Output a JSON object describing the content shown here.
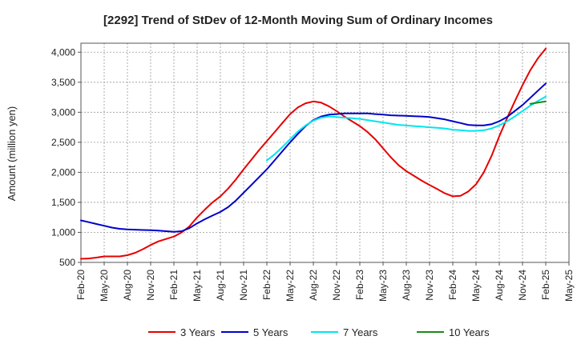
{
  "chart_data": {
    "type": "line",
    "title": "[2292]  Trend of StDev of 12-Month Moving Sum of Ordinary Incomes",
    "xlabel": "",
    "ylabel": "Amount (million yen)",
    "ylim": [
      500,
      4150
    ],
    "yticks": [
      500,
      1000,
      1500,
      2000,
      2500,
      3000,
      3500,
      4000
    ],
    "ytick_labels": [
      "500",
      "1,000",
      "1,500",
      "2,000",
      "2,500",
      "3,000",
      "3,500",
      "4,000"
    ],
    "xlim": [
      0,
      63
    ],
    "xticks": [
      0,
      3,
      6,
      9,
      12,
      15,
      18,
      21,
      24,
      27,
      30,
      33,
      36,
      39,
      42,
      45,
      48,
      51,
      54,
      57,
      60,
      63
    ],
    "xtick_labels": [
      "Feb-20",
      "May-20",
      "Aug-20",
      "Nov-20",
      "Feb-21",
      "May-21",
      "Aug-21",
      "Nov-21",
      "Feb-22",
      "May-22",
      "Aug-22",
      "Nov-22",
      "Feb-23",
      "May-23",
      "Aug-23",
      "Nov-23",
      "Feb-24",
      "May-24",
      "Aug-24",
      "Nov-24",
      "Feb-25",
      "May-25"
    ],
    "grid": true,
    "legend_position": "bottom",
    "series": [
      {
        "name": "3 Years",
        "color": "#e60000",
        "x": [
          0,
          1,
          2,
          3,
          4,
          5,
          6,
          7,
          8,
          9,
          10,
          11,
          12,
          13,
          14,
          15,
          16,
          17,
          18,
          19,
          20,
          21,
          22,
          23,
          24,
          25,
          26,
          27,
          28,
          29,
          30,
          31,
          32,
          33,
          34,
          35,
          36,
          37,
          38,
          39,
          40,
          41,
          42,
          43,
          44,
          45,
          46,
          47,
          48,
          49,
          50,
          51,
          52,
          53,
          54,
          55,
          56,
          57,
          58,
          59,
          60
        ],
        "values": [
          560,
          565,
          580,
          600,
          600,
          600,
          620,
          660,
          720,
          790,
          850,
          890,
          930,
          1000,
          1100,
          1250,
          1380,
          1500,
          1600,
          1730,
          1880,
          2050,
          2210,
          2370,
          2520,
          2670,
          2820,
          2970,
          3080,
          3150,
          3180,
          3160,
          3100,
          3020,
          2930,
          2850,
          2770,
          2670,
          2550,
          2400,
          2250,
          2120,
          2020,
          1940,
          1860,
          1790,
          1720,
          1650,
          1600,
          1610,
          1680,
          1800,
          2000,
          2270,
          2600,
          2900,
          3180,
          3450,
          3700,
          3900,
          4060
        ]
      },
      {
        "name": "5 Years",
        "color": "#0000cc",
        "x": [
          0,
          1,
          2,
          3,
          4,
          5,
          6,
          7,
          8,
          9,
          10,
          11,
          12,
          13,
          14,
          15,
          16,
          17,
          18,
          19,
          20,
          21,
          22,
          23,
          24,
          25,
          26,
          27,
          28,
          29,
          30,
          31,
          32,
          33,
          34,
          35,
          36,
          37,
          38,
          39,
          40,
          41,
          42,
          43,
          44,
          45,
          46,
          47,
          48,
          49,
          50,
          51,
          52,
          53,
          54,
          55,
          56,
          57,
          58,
          59,
          60
        ],
        "values": [
          1200,
          1170,
          1140,
          1110,
          1080,
          1060,
          1050,
          1045,
          1040,
          1035,
          1030,
          1020,
          1010,
          1020,
          1070,
          1150,
          1220,
          1280,
          1340,
          1420,
          1530,
          1660,
          1790,
          1920,
          2050,
          2200,
          2350,
          2500,
          2640,
          2770,
          2870,
          2930,
          2960,
          2970,
          2980,
          2980,
          2980,
          2980,
          2970,
          2960,
          2950,
          2945,
          2940,
          2935,
          2930,
          2920,
          2900,
          2880,
          2850,
          2820,
          2790,
          2780,
          2780,
          2800,
          2850,
          2920,
          3020,
          3120,
          3240,
          3360,
          3480
        ]
      },
      {
        "name": "7 Years",
        "color": "#00e5ee",
        "x": [
          24,
          25,
          26,
          27,
          28,
          29,
          30,
          31,
          32,
          33,
          34,
          35,
          36,
          37,
          38,
          39,
          40,
          41,
          42,
          43,
          44,
          45,
          46,
          47,
          48,
          49,
          50,
          51,
          52,
          53,
          54,
          55,
          56,
          57,
          58,
          59,
          60
        ],
        "values": [
          2200,
          2300,
          2420,
          2550,
          2680,
          2780,
          2860,
          2910,
          2930,
          2920,
          2910,
          2900,
          2890,
          2870,
          2850,
          2830,
          2810,
          2790,
          2780,
          2770,
          2760,
          2750,
          2740,
          2730,
          2710,
          2700,
          2690,
          2690,
          2700,
          2730,
          2780,
          2850,
          2930,
          3020,
          3110,
          3190,
          3260
        ]
      },
      {
        "name": "10 Years",
        "color": "#1a8c1a",
        "x": [
          58,
          59,
          60
        ],
        "values": [
          3140,
          3160,
          3180
        ]
      }
    ]
  }
}
